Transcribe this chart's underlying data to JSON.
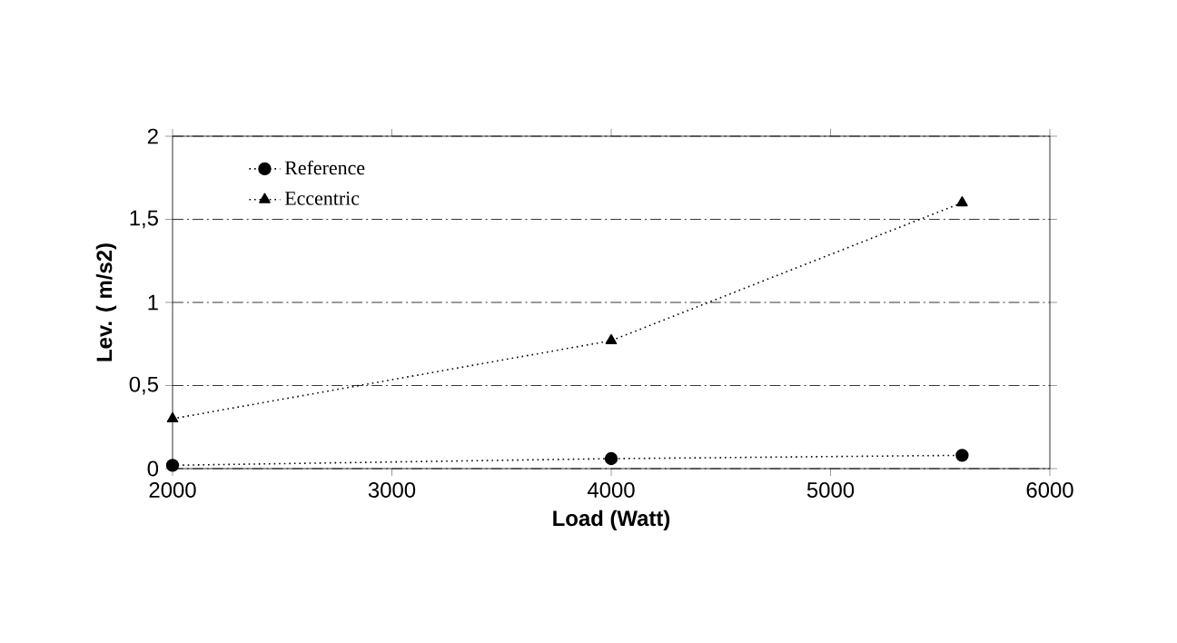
{
  "chart_data": {
    "type": "line",
    "xlabel": "Load (Watt)",
    "ylabel": "Lev. ( m/s2)",
    "x": [
      2000,
      4000,
      5600
    ],
    "series": [
      {
        "name": "Reference",
        "color": "#000000",
        "values": [
          0.02,
          0.06,
          0.08
        ],
        "marker": "circle"
      },
      {
        "name": "Eccentric",
        "color": "#000000",
        "values": [
          0.3,
          0.77,
          1.6
        ],
        "marker": "triangle"
      }
    ],
    "xlim": [
      2000,
      6000
    ],
    "xticks": [
      2000,
      3000,
      4000,
      5000,
      6000
    ],
    "ylim": [
      0,
      2
    ],
    "yticks": [
      0,
      {
        "value": 0.5,
        "label": "0,5"
      },
      1,
      {
        "value": 1.5,
        "label": "1,5"
      },
      2
    ],
    "grid": "y",
    "legend": "top left",
    "line_style": "dotted"
  }
}
